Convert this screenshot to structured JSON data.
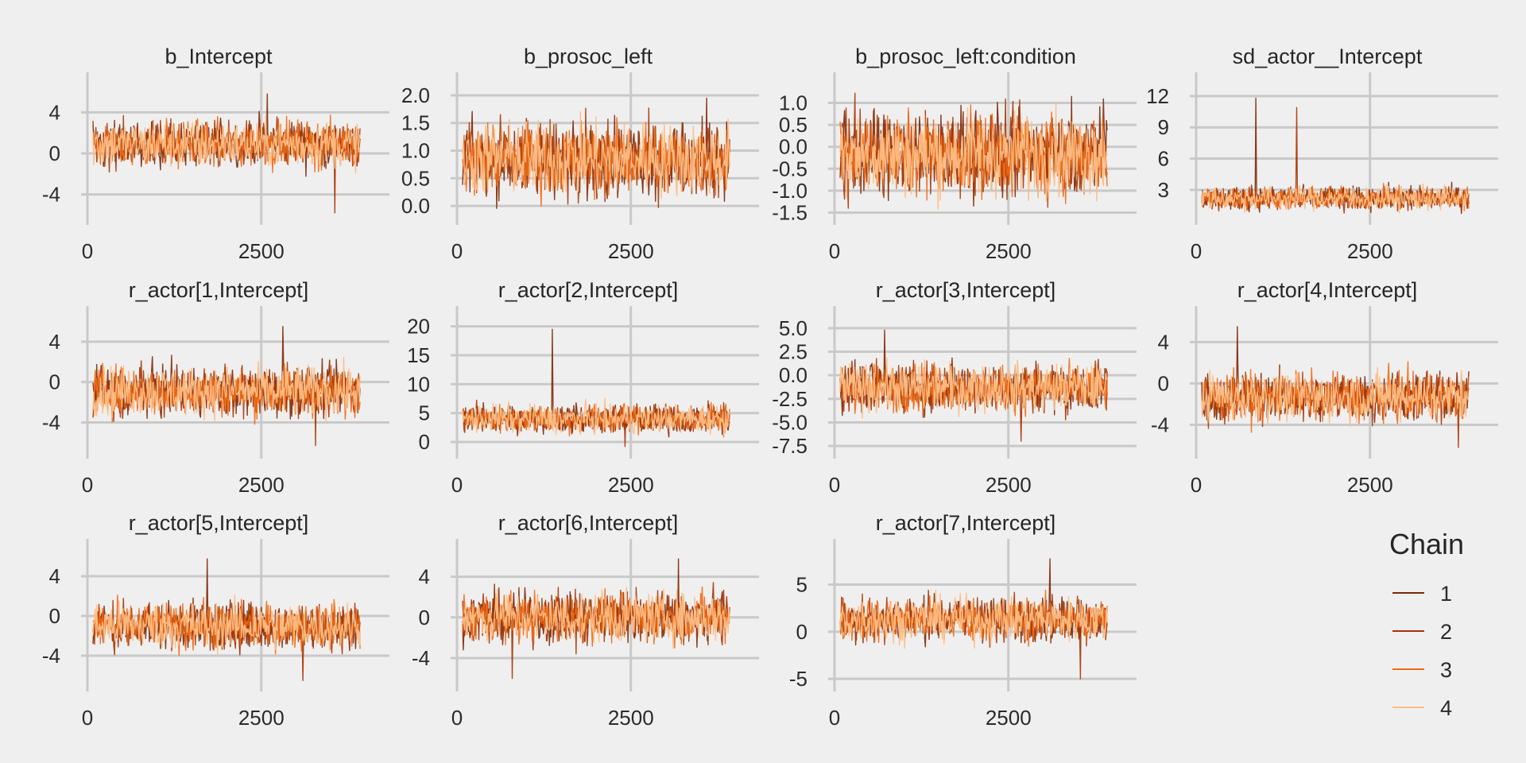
{
  "chart_data": {
    "type": "line",
    "x": {
      "min": 0,
      "max": 4000,
      "ticks": [
        0,
        2500
      ]
    },
    "grid": true,
    "legend": {
      "title": "Chain",
      "placement": "right",
      "entries": [
        {
          "label": "1",
          "color": "#7f2704"
        },
        {
          "label": "2",
          "color": "#a63603"
        },
        {
          "label": "3",
          "color": "#f16913"
        },
        {
          "label": "4",
          "color": "#fdbe85"
        }
      ]
    },
    "panels": [
      {
        "title": "b_Intercept",
        "ylim": [
          -6.2,
          6.2
        ],
        "yticks": [
          -4,
          0,
          4
        ],
        "ytick_labels": [
          "-4",
          "0",
          "4"
        ],
        "center": 0.9,
        "spread": 2.0,
        "spikes": [
          5.8,
          -5.8
        ]
      },
      {
        "title": "b_prosoc_left",
        "ylim": [
          -0.2,
          2.1
        ],
        "yticks": [
          0.0,
          0.5,
          1.0,
          1.5,
          2.0
        ],
        "ytick_labels": [
          "0.0",
          "0.5",
          "1.0",
          "1.5",
          "2.0"
        ],
        "center": 0.85,
        "spread": 0.6,
        "spikes": [
          1.95,
          0.05
        ]
      },
      {
        "title": "b_prosoc_left:condition",
        "ylim": [
          -1.6,
          1.3
        ],
        "yticks": [
          -1.5,
          -1.0,
          -0.5,
          0.0,
          0.5,
          1.0
        ],
        "ytick_labels": [
          "-1.5",
          "-1.0",
          "-0.5",
          "0.0",
          "0.5",
          "1.0"
        ],
        "center": -0.15,
        "spread": 0.85,
        "spikes": [
          1.15,
          -1.4
        ]
      },
      {
        "title": "sd_actor__Intercept",
        "ylim": [
          0.4,
          12.6
        ],
        "yticks": [
          3,
          6,
          9,
          12
        ],
        "ytick_labels": [
          "3",
          "6",
          "9",
          "12"
        ],
        "center": 2.2,
        "spread": 1.0,
        "spikes": [
          11.8,
          10.9
        ]
      },
      {
        "title": "r_actor[1,Intercept]",
        "ylim": [
          -6.8,
          5.8
        ],
        "yticks": [
          -4,
          0,
          4
        ],
        "ytick_labels": [
          "-4",
          "0",
          "4"
        ],
        "center": -0.9,
        "spread": 2.2,
        "spikes": [
          5.5,
          -6.3
        ]
      },
      {
        "title": "r_actor[2,Intercept]",
        "ylim": [
          -1.5,
          20.5
        ],
        "yticks": [
          0,
          5,
          10,
          15,
          20
        ],
        "ytick_labels": [
          "0",
          "5",
          "10",
          "15",
          "20"
        ],
        "center": 4.0,
        "spread": 2.2,
        "spikes": [
          19.5,
          -0.8
        ]
      },
      {
        "title": "r_actor[3,Intercept]",
        "ylim": [
          -8.0,
          5.5
        ],
        "yticks": [
          -7.5,
          -5.0,
          -2.5,
          0.0,
          2.5,
          5.0
        ],
        "ytick_labels": [
          "-7.5",
          "-5.0",
          "-2.5",
          "0.0",
          "2.5",
          "5.0"
        ],
        "center": -1.3,
        "spread": 2.3,
        "spikes": [
          4.8,
          -7.0
        ]
      },
      {
        "title": "r_actor[4,Intercept]",
        "ylim": [
          -6.5,
          5.8
        ],
        "yticks": [
          -4,
          0,
          4
        ],
        "ytick_labels": [
          "-4",
          "0",
          "4"
        ],
        "center": -1.3,
        "spread": 2.1,
        "spikes": [
          5.5,
          -6.2
        ]
      },
      {
        "title": "r_actor[5,Intercept]",
        "ylim": [
          -6.8,
          6.0
        ],
        "yticks": [
          -4,
          0,
          4
        ],
        "ytick_labels": [
          "-4",
          "0",
          "4"
        ],
        "center": -1.0,
        "spread": 2.1,
        "spikes": [
          5.8,
          -6.5
        ]
      },
      {
        "title": "r_actor[6,Intercept]",
        "ylim": [
          -6.5,
          6.0
        ],
        "yticks": [
          -4,
          0,
          4
        ],
        "ytick_labels": [
          "-4",
          "0",
          "4"
        ],
        "center": 0.0,
        "spread": 2.2,
        "spikes": [
          5.8,
          -6.0
        ]
      },
      {
        "title": "r_actor[7,Intercept]",
        "ylim": [
          -5.5,
          8.0
        ],
        "yticks": [
          -5,
          0,
          5
        ],
        "ytick_labels": [
          "-5",
          "0",
          "5"
        ],
        "center": 1.3,
        "spread": 2.1,
        "spikes": [
          7.8,
          -5.0
        ]
      }
    ]
  }
}
